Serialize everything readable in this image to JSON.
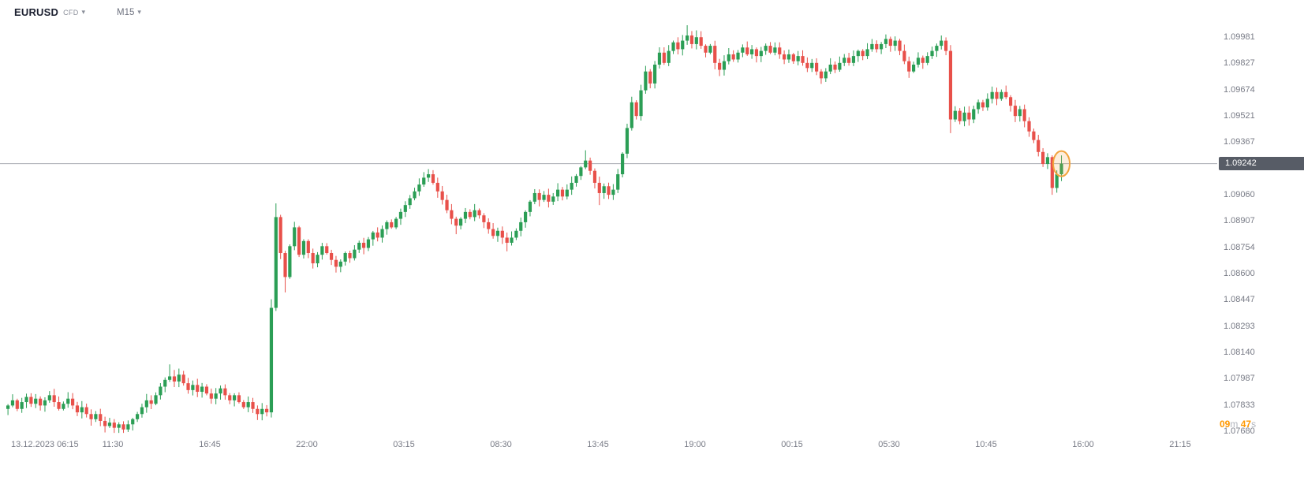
{
  "header": {
    "symbol": "EURUSD",
    "instrument_type": "CFD",
    "timeframe": "M15"
  },
  "icons": {
    "chevron_down": "▾"
  },
  "countdown": {
    "minutes": "09",
    "minutes_unit": "m",
    "seconds": "47",
    "seconds_unit": "s"
  },
  "colors": {
    "bullish": "#2b9e55",
    "bearish": "#e8504a",
    "price_line": "#a6a9b0",
    "badge_bg": "#575c66",
    "highlight": "#f2a33c",
    "text_muted": "#787b86",
    "countdown_orange": "#ff9800"
  },
  "chart_data": {
    "type": "candlestick",
    "title": "EURUSD CFD M15",
    "symbol": "EURUSD",
    "timeframe": "M15",
    "interval_minutes": 15,
    "price_axis_ticks": [
      "1.09981",
      "1.09827",
      "1.09674",
      "1.09521",
      "1.09367",
      "1.09060",
      "1.08907",
      "1.08754",
      "1.08600",
      "1.08447",
      "1.08293",
      "1.08140",
      "1.07987",
      "1.07833",
      "1.07680"
    ],
    "time_axis_ticks": [
      "13.12.2023 06:15",
      "11:30",
      "16:45",
      "22:00",
      "03:15",
      "08:30",
      "13:45",
      "19:00",
      "00:15",
      "05:30",
      "10:45",
      "16:00",
      "21:15"
    ],
    "ylim": [
      1.0768,
      1.1005
    ],
    "grid": false,
    "first_open": 1.0781,
    "closes": [
      1.0783,
      1.0786,
      1.0781,
      1.0785,
      1.0788,
      1.0784,
      1.0787,
      1.0783,
      1.0786,
      1.0789,
      1.0785,
      1.0781,
      1.0784,
      1.0787,
      1.0783,
      1.0779,
      1.0782,
      1.0778,
      1.0775,
      1.0778,
      1.0774,
      1.0771,
      1.0773,
      1.077,
      1.0772,
      1.0769,
      1.0772,
      1.0775,
      1.0778,
      1.0782,
      1.0786,
      1.0784,
      1.0789,
      1.0794,
      1.0798,
      1.08,
      1.0797,
      1.0801,
      1.0796,
      1.0792,
      1.0795,
      1.0791,
      1.0794,
      1.079,
      1.0787,
      1.079,
      1.0793,
      1.0789,
      1.0786,
      1.0789,
      1.0785,
      1.0782,
      1.0785,
      1.0781,
      1.0778,
      1.0781,
      1.0779,
      1.084,
      1.0893,
      1.0872,
      1.0858,
      1.0876,
      1.0887,
      1.0871,
      1.0879,
      1.0872,
      1.0866,
      1.0871,
      1.0876,
      1.0872,
      1.0868,
      1.0864,
      1.0867,
      1.0872,
      1.0869,
      1.0874,
      1.0878,
      1.0875,
      1.088,
      1.0884,
      1.0881,
      1.0886,
      1.089,
      1.0887,
      1.0892,
      1.0896,
      1.09,
      1.0904,
      1.0908,
      1.0912,
      1.0916,
      1.0918,
      1.0913,
      1.0908,
      1.0903,
      1.0897,
      1.0892,
      1.0888,
      1.0892,
      1.0896,
      1.0893,
      1.0897,
      1.0894,
      1.089,
      1.0886,
      1.0882,
      1.0885,
      1.0881,
      1.0878,
      1.0881,
      1.0885,
      1.089,
      1.0896,
      1.0902,
      1.0907,
      1.0903,
      1.0906,
      1.0902,
      1.0905,
      1.0909,
      1.0905,
      1.0909,
      1.0913,
      1.0917,
      1.0922,
      1.0926,
      1.092,
      1.0913,
      1.0907,
      1.0911,
      1.0906,
      1.0909,
      1.0918,
      1.093,
      1.0945,
      1.096,
      1.0952,
      1.0967,
      1.0978,
      1.0971,
      1.0982,
      1.0989,
      1.0983,
      1.099,
      1.0995,
      1.0991,
      1.0996,
      1.0999,
      1.0994,
      1.0998,
      1.0993,
      1.0989,
      1.0993,
      1.0983,
      1.0979,
      1.0984,
      1.0988,
      1.0985,
      1.0989,
      1.0992,
      1.0988,
      1.0991,
      1.0987,
      1.099,
      1.0993,
      1.0989,
      1.0992,
      1.0988,
      1.0985,
      1.0988,
      1.0984,
      1.0987,
      1.0983,
      1.098,
      1.0983,
      1.0978,
      1.0974,
      1.0978,
      1.0982,
      1.0979,
      1.0983,
      1.0986,
      1.0983,
      1.0987,
      1.099,
      1.0987,
      1.0991,
      1.0994,
      1.0991,
      1.0994,
      1.0997,
      1.0993,
      1.0996,
      1.099,
      1.0984,
      1.0978,
      1.0982,
      1.0986,
      1.0983,
      1.0987,
      1.099,
      1.0993,
      1.0996,
      1.099,
      1.095,
      1.0955,
      1.0949,
      1.0954,
      1.095,
      1.0956,
      1.096,
      1.0957,
      1.0962,
      1.0966,
      1.0962,
      1.0966,
      1.0963,
      1.0958,
      1.0952,
      1.0956,
      1.0949,
      1.0943,
      1.0938,
      1.0931,
      1.0924,
      1.0928,
      1.091,
      1.0918,
      1.09242
    ],
    "wick_overrides": {
      "23": {
        "low": 1.0767
      },
      "25": {
        "low": 1.0767
      },
      "35": {
        "high": 1.0807
      },
      "57": {
        "high": 1.0845,
        "low": 1.0776
      },
      "58": {
        "high": 1.0901
      },
      "60": {
        "low": 1.0849
      },
      "91": {
        "high": 1.0921
      },
      "97": {
        "low": 1.0883
      },
      "108": {
        "low": 1.0873
      },
      "125": {
        "high": 1.0932
      },
      "128": {
        "low": 1.09
      },
      "147": {
        "high": 1.1005
      },
      "149": {
        "high": 1.1002
      },
      "202": {
        "high": 1.0999
      },
      "204": {
        "low": 1.0942
      },
      "226": {
        "low": 1.0906
      },
      "228": {
        "high": 1.0929,
        "low": 1.0914
      }
    },
    "current_price": 1.09242,
    "current_price_label": "1.09242",
    "countdown_to_bar_close": "09m 47s",
    "highlight_last_candle": true,
    "legend_position": "none"
  }
}
